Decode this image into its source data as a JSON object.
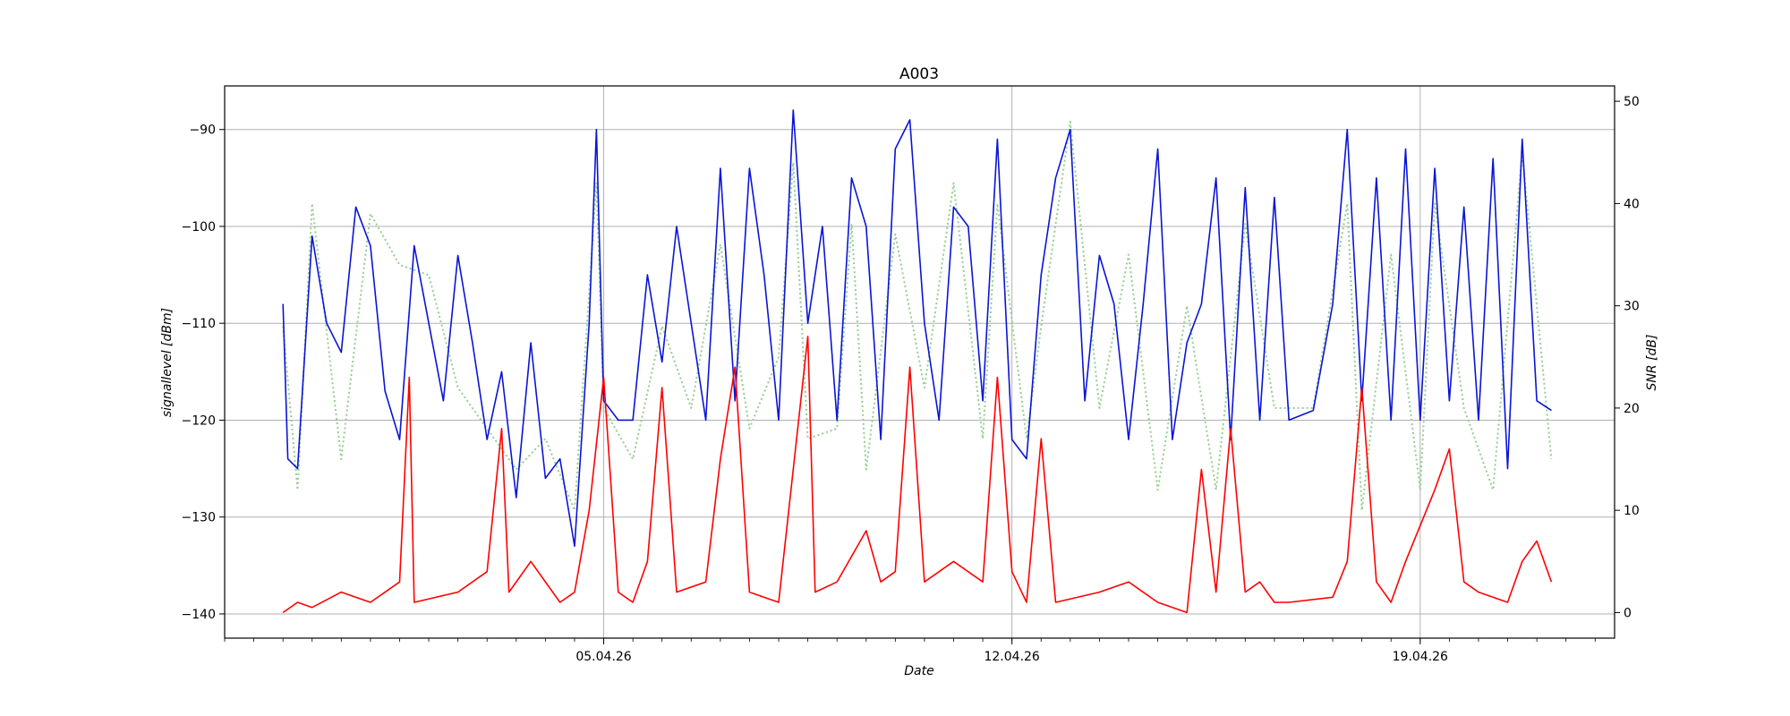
{
  "chart_data": {
    "type": "line",
    "title": "A003",
    "xlabel": "Date",
    "ylabel_left": "signallevel [dBm]",
    "ylabel_right": "SNR [dB]",
    "x_ticks": [
      {
        "date": "2026-04-05",
        "label": "05.04.26"
      },
      {
        "date": "2026-04-12",
        "label": "12.04.26"
      },
      {
        "date": "2026-04-19",
        "label": "19.04.26"
      }
    ],
    "xlim": [
      "2026-03-29T12:00",
      "2026-04-22T08:00"
    ],
    "ylim_left": [
      -142.5,
      -85.5
    ],
    "yticks_left": [
      -90,
      -100,
      -110,
      -120,
      -130,
      -140
    ],
    "ylim_right": [
      -2.5,
      51.5
    ],
    "yticks_right": [
      0,
      10,
      20,
      30,
      40,
      50
    ],
    "grid": true,
    "colors": {
      "signallevel": "#0a14d6",
      "snr": "#ff0000",
      "secondary_dotted": "#93cf8d",
      "grid": "#b0b0b0"
    },
    "series": [
      {
        "axis": "left",
        "style": "solid",
        "color": "#0a14d6",
        "points": [
          [
            "2026-03-30T12:00",
            -108
          ],
          [
            "2026-03-30T14:00",
            -124
          ],
          [
            "2026-03-30T18:00",
            -125
          ],
          [
            "2026-03-31T00:00",
            -101
          ],
          [
            "2026-03-31T06:00",
            -110
          ],
          [
            "2026-03-31T12:00",
            -113
          ],
          [
            "2026-03-31T18:00",
            -98
          ],
          [
            "2026-04-01T00:00",
            -102
          ],
          [
            "2026-04-01T06:00",
            -117
          ],
          [
            "2026-04-01T12:00",
            -122
          ],
          [
            "2026-04-01T18:00",
            -102
          ],
          [
            "2026-04-02T00:00",
            -110
          ],
          [
            "2026-04-02T06:00",
            -118
          ],
          [
            "2026-04-02T12:00",
            -103
          ],
          [
            "2026-04-02T18:00",
            -112
          ],
          [
            "2026-04-03T00:00",
            -122
          ],
          [
            "2026-04-03T06:00",
            -115
          ],
          [
            "2026-04-03T12:00",
            -128
          ],
          [
            "2026-04-03T18:00",
            -112
          ],
          [
            "2026-04-04T00:00",
            -126
          ],
          [
            "2026-04-04T06:00",
            -124
          ],
          [
            "2026-04-04T12:00",
            -133
          ],
          [
            "2026-04-04T18:00",
            -110
          ],
          [
            "2026-04-04T21:00",
            -90
          ],
          [
            "2026-04-05T00:00",
            -118
          ],
          [
            "2026-04-05T06:00",
            -120
          ],
          [
            "2026-04-05T12:00",
            -120
          ],
          [
            "2026-04-05T18:00",
            -105
          ],
          [
            "2026-04-06T00:00",
            -114
          ],
          [
            "2026-04-06T06:00",
            -100
          ],
          [
            "2026-04-06T12:00",
            -110
          ],
          [
            "2026-04-06T18:00",
            -120
          ],
          [
            "2026-04-07T00:00",
            -94
          ],
          [
            "2026-04-07T06:00",
            -118
          ],
          [
            "2026-04-07T12:00",
            -94
          ],
          [
            "2026-04-07T18:00",
            -105
          ],
          [
            "2026-04-08T00:00",
            -120
          ],
          [
            "2026-04-08T06:00",
            -88
          ],
          [
            "2026-04-08T12:00",
            -110
          ],
          [
            "2026-04-08T18:00",
            -100
          ],
          [
            "2026-04-09T00:00",
            -120
          ],
          [
            "2026-04-09T06:00",
            -95
          ],
          [
            "2026-04-09T12:00",
            -100
          ],
          [
            "2026-04-09T18:00",
            -122
          ],
          [
            "2026-04-10T00:00",
            -92
          ],
          [
            "2026-04-10T06:00",
            -89
          ],
          [
            "2026-04-10T12:00",
            -110
          ],
          [
            "2026-04-10T18:00",
            -120
          ],
          [
            "2026-04-11T00:00",
            -98
          ],
          [
            "2026-04-11T06:00",
            -100
          ],
          [
            "2026-04-11T12:00",
            -118
          ],
          [
            "2026-04-11T18:00",
            -91
          ],
          [
            "2026-04-12T00:00",
            -122
          ],
          [
            "2026-04-12T06:00",
            -124
          ],
          [
            "2026-04-12T12:00",
            -105
          ],
          [
            "2026-04-12T18:00",
            -95
          ],
          [
            "2026-04-13T00:00",
            -90
          ],
          [
            "2026-04-13T06:00",
            -118
          ],
          [
            "2026-04-13T12:00",
            -103
          ],
          [
            "2026-04-13T18:00",
            -108
          ],
          [
            "2026-04-14T00:00",
            -122
          ],
          [
            "2026-04-14T06:00",
            -108
          ],
          [
            "2026-04-14T12:00",
            -92
          ],
          [
            "2026-04-14T18:00",
            -122
          ],
          [
            "2026-04-15T00:00",
            -112
          ],
          [
            "2026-04-15T06:00",
            -108
          ],
          [
            "2026-04-15T12:00",
            -95
          ],
          [
            "2026-04-15T18:00",
            -122
          ],
          [
            "2026-04-16T00:00",
            -96
          ],
          [
            "2026-04-16T06:00",
            -120
          ],
          [
            "2026-04-16T12:00",
            -97
          ],
          [
            "2026-04-16T18:00",
            -120
          ],
          [
            "2026-04-17T04:00",
            -119
          ],
          [
            "2026-04-17T12:00",
            -108
          ],
          [
            "2026-04-17T18:00",
            -90
          ],
          [
            "2026-04-18T00:00",
            -118
          ],
          [
            "2026-04-18T06:00",
            -95
          ],
          [
            "2026-04-18T12:00",
            -120
          ],
          [
            "2026-04-18T18:00",
            -92
          ],
          [
            "2026-04-19T00:00",
            -120
          ],
          [
            "2026-04-19T06:00",
            -94
          ],
          [
            "2026-04-19T12:00",
            -118
          ],
          [
            "2026-04-19T18:00",
            -98
          ],
          [
            "2026-04-20T00:00",
            -120
          ],
          [
            "2026-04-20T06:00",
            -93
          ],
          [
            "2026-04-20T12:00",
            -125
          ],
          [
            "2026-04-20T18:00",
            -91
          ],
          [
            "2026-04-21T00:00",
            -118
          ],
          [
            "2026-04-21T06:00",
            -119
          ]
        ]
      },
      {
        "axis": "right",
        "style": "solid",
        "color": "#ff0000",
        "points": [
          [
            "2026-03-30T12:00",
            0
          ],
          [
            "2026-03-30T18:00",
            1
          ],
          [
            "2026-03-31T00:00",
            0.5
          ],
          [
            "2026-03-31T12:00",
            2
          ],
          [
            "2026-04-01T00:00",
            1
          ],
          [
            "2026-04-01T12:00",
            3
          ],
          [
            "2026-04-01T16:00",
            23
          ],
          [
            "2026-04-01T18:00",
            1
          ],
          [
            "2026-04-02T12:00",
            2
          ],
          [
            "2026-04-03T00:00",
            4
          ],
          [
            "2026-04-03T06:00",
            18
          ],
          [
            "2026-04-03T09:00",
            2
          ],
          [
            "2026-04-03T18:00",
            5
          ],
          [
            "2026-04-04T06:00",
            1
          ],
          [
            "2026-04-04T12:00",
            2
          ],
          [
            "2026-04-04T18:00",
            10
          ],
          [
            "2026-04-05T00:00",
            23
          ],
          [
            "2026-04-05T06:00",
            2
          ],
          [
            "2026-04-05T12:00",
            1
          ],
          [
            "2026-04-05T18:00",
            5
          ],
          [
            "2026-04-06T00:00",
            22
          ],
          [
            "2026-04-06T06:00",
            2
          ],
          [
            "2026-04-06T18:00",
            3
          ],
          [
            "2026-04-07T00:00",
            15
          ],
          [
            "2026-04-07T06:00",
            24
          ],
          [
            "2026-04-07T12:00",
            2
          ],
          [
            "2026-04-08T00:00",
            1
          ],
          [
            "2026-04-08T12:00",
            27
          ],
          [
            "2026-04-08T15:00",
            2
          ],
          [
            "2026-04-09T00:00",
            3
          ],
          [
            "2026-04-09T12:00",
            8
          ],
          [
            "2026-04-09T18:00",
            3
          ],
          [
            "2026-04-10T00:00",
            4
          ],
          [
            "2026-04-10T06:00",
            24
          ],
          [
            "2026-04-10T12:00",
            3
          ],
          [
            "2026-04-11T00:00",
            5
          ],
          [
            "2026-04-11T12:00",
            3
          ],
          [
            "2026-04-11T18:00",
            23
          ],
          [
            "2026-04-12T00:00",
            4
          ],
          [
            "2026-04-12T06:00",
            1
          ],
          [
            "2026-04-12T12:00",
            17
          ],
          [
            "2026-04-12T18:00",
            1
          ],
          [
            "2026-04-13T12:00",
            2
          ],
          [
            "2026-04-14T00:00",
            3
          ],
          [
            "2026-04-14T12:00",
            1
          ],
          [
            "2026-04-15T00:00",
            0
          ],
          [
            "2026-04-15T06:00",
            14
          ],
          [
            "2026-04-15T12:00",
            2
          ],
          [
            "2026-04-15T18:00",
            18
          ],
          [
            "2026-04-16T00:00",
            2
          ],
          [
            "2026-04-16T06:00",
            3
          ],
          [
            "2026-04-16T12:00",
            1
          ],
          [
            "2026-04-16T18:00",
            1
          ],
          [
            "2026-04-17T12:00",
            1.5
          ],
          [
            "2026-04-17T18:00",
            5
          ],
          [
            "2026-04-18T00:00",
            22
          ],
          [
            "2026-04-18T06:00",
            3
          ],
          [
            "2026-04-18T12:00",
            1
          ],
          [
            "2026-04-18T18:00",
            5
          ],
          [
            "2026-04-19T06:00",
            12
          ],
          [
            "2026-04-19T12:00",
            16
          ],
          [
            "2026-04-19T18:00",
            3
          ],
          [
            "2026-04-20T00:00",
            2
          ],
          [
            "2026-04-20T12:00",
            1
          ],
          [
            "2026-04-20T18:00",
            5
          ],
          [
            "2026-04-21T00:00",
            7
          ],
          [
            "2026-04-21T06:00",
            3
          ]
        ]
      },
      {
        "axis": "right",
        "style": "dotted",
        "color": "#93cf8d",
        "points": [
          [
            "2026-03-30T12:00",
            28
          ],
          [
            "2026-03-30T18:00",
            12
          ],
          [
            "2026-03-31T00:00",
            40
          ],
          [
            "2026-03-31T12:00",
            15
          ],
          [
            "2026-04-01T00:00",
            39
          ],
          [
            "2026-04-01T12:00",
            34
          ],
          [
            "2026-04-02T00:00",
            33
          ],
          [
            "2026-04-02T12:00",
            22
          ],
          [
            "2026-04-03T00:00",
            18
          ],
          [
            "2026-04-03T12:00",
            14
          ],
          [
            "2026-04-04T00:00",
            17
          ],
          [
            "2026-04-04T12:00",
            10
          ],
          [
            "2026-04-04T21:00",
            42
          ],
          [
            "2026-04-05T00:00",
            20
          ],
          [
            "2026-04-05T12:00",
            15
          ],
          [
            "2026-04-06T00:00",
            28
          ],
          [
            "2026-04-06T12:00",
            20
          ],
          [
            "2026-04-07T00:00",
            36
          ],
          [
            "2026-04-07T12:00",
            18
          ],
          [
            "2026-04-08T00:00",
            25
          ],
          [
            "2026-04-08T06:00",
            44
          ],
          [
            "2026-04-08T12:00",
            17
          ],
          [
            "2026-04-09T00:00",
            18
          ],
          [
            "2026-04-09T06:00",
            38
          ],
          [
            "2026-04-09T12:00",
            14
          ],
          [
            "2026-04-10T00:00",
            37
          ],
          [
            "2026-04-10T12:00",
            22
          ],
          [
            "2026-04-11T00:00",
            42
          ],
          [
            "2026-04-11T12:00",
            17
          ],
          [
            "2026-04-11T18:00",
            40
          ],
          [
            "2026-04-12T06:00",
            17
          ],
          [
            "2026-04-12T12:00",
            28
          ],
          [
            "2026-04-13T00:00",
            48
          ],
          [
            "2026-04-13T12:00",
            20
          ],
          [
            "2026-04-14T00:00",
            35
          ],
          [
            "2026-04-14T12:00",
            12
          ],
          [
            "2026-04-15T00:00",
            30
          ],
          [
            "2026-04-15T12:00",
            12
          ],
          [
            "2026-04-16T00:00",
            38
          ],
          [
            "2026-04-16T12:00",
            20
          ],
          [
            "2026-04-17T04:00",
            20
          ],
          [
            "2026-04-17T18:00",
            40
          ],
          [
            "2026-04-18T00:00",
            10
          ],
          [
            "2026-04-18T12:00",
            35
          ],
          [
            "2026-04-19T00:00",
            12
          ],
          [
            "2026-04-19T06:00",
            40
          ],
          [
            "2026-04-19T18:00",
            20
          ],
          [
            "2026-04-20T06:00",
            12
          ],
          [
            "2026-04-20T18:00",
            45
          ],
          [
            "2026-04-21T06:00",
            15
          ]
        ]
      }
    ]
  }
}
